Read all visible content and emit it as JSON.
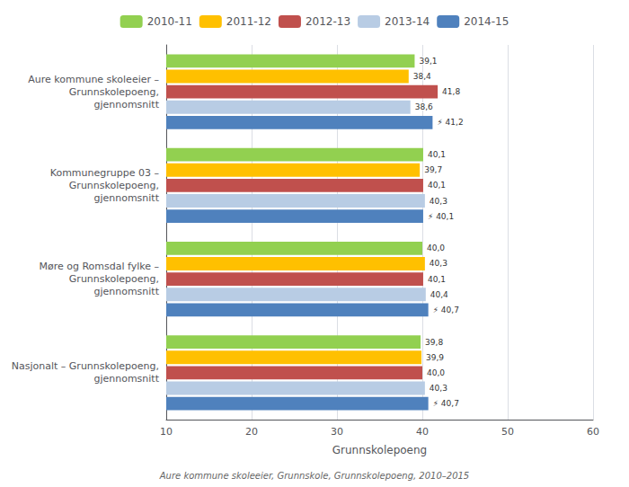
{
  "chart_data": {
    "type": "bar",
    "orientation": "horizontal",
    "categories": [
      "Aure kommune skoleeier –\nGrunnskolepoeng,\ngjennomsnitt",
      "Kommunegruppe 03 –\nGrunnskolepoeng,\ngjennomsnitt",
      "Møre og Romsdal fylke –\nGrunnskolepoeng,\ngjennomsnitt",
      "Nasjonalt – Grunnskolepoeng,\ngjennomsnitt"
    ],
    "series": [
      {
        "name": "2010-11",
        "color": "#92d050",
        "values": [
          39.1,
          40.1,
          40.0,
          39.8
        ],
        "value_labels": [
          "39,1",
          "40,1",
          "40,0",
          "39,8"
        ]
      },
      {
        "name": "2011-12",
        "color": "#ffc000",
        "values": [
          38.4,
          39.7,
          40.3,
          39.9
        ],
        "value_labels": [
          "38,4",
          "39,7",
          "40,3",
          "39,9"
        ]
      },
      {
        "name": "2012-13",
        "color": "#c0504d",
        "values": [
          41.8,
          40.1,
          40.1,
          40.0
        ],
        "value_labels": [
          "41,8",
          "40,1",
          "40,1",
          "40,0"
        ]
      },
      {
        "name": "2013-14",
        "color": "#b8cce4",
        "values": [
          38.6,
          40.3,
          40.4,
          40.3
        ],
        "value_labels": [
          "38,6",
          "40,3",
          "40,4",
          "40,3"
        ]
      },
      {
        "name": "2014-15",
        "color": "#4f81bd",
        "values": [
          41.2,
          40.1,
          40.7,
          40.7
        ],
        "value_labels": [
          "⚡ 41,2",
          "⚡ 40,1",
          "⚡ 40,7",
          "⚡ 40,7"
        ]
      }
    ],
    "xlim": [
      10,
      60
    ],
    "xticks": [
      10,
      20,
      30,
      40,
      50,
      60
    ],
    "xlabel": "Grunnskolepoeng",
    "grid": true,
    "legend": "top",
    "data_labels": true,
    "annotations": [
      "Aure kommune skoleeier, Grunnskole, Grunnskolepoeng, 2010–2015"
    ]
  }
}
